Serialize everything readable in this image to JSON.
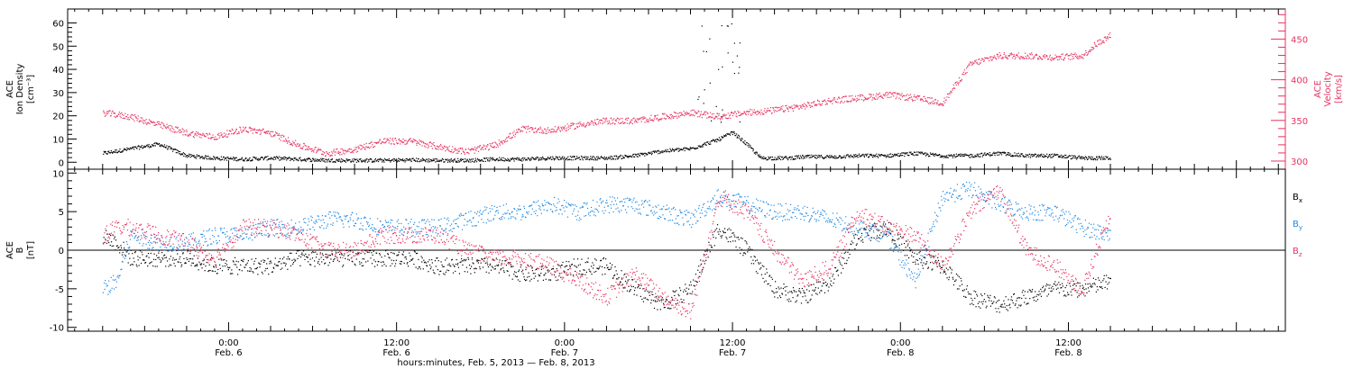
{
  "colors": {
    "density": "#000000",
    "velocity": "#e8325f",
    "bx": "#000000",
    "by": "#1e88e5",
    "bz": "#e8325f",
    "axis": "#000000"
  },
  "chart_data": [
    {
      "type": "scatter",
      "panel": "top",
      "left_axis": {
        "label_lines": [
          "ACE",
          "Ion Density"
        ],
        "unit": "[cm⁻³]",
        "range": [
          -3,
          66
        ],
        "ticks": [
          0,
          10,
          20,
          30,
          40,
          50,
          60
        ],
        "tick_labels": [
          "0",
          "10",
          "20",
          "30",
          "40",
          "50",
          "60"
        ]
      },
      "right_axis": {
        "label_lines": [
          "ACE",
          "Velocity"
        ],
        "unit": "[km/s]",
        "range": [
          290,
          487
        ],
        "ticks": [
          300,
          350,
          400,
          450
        ],
        "tick_labels": [
          "300",
          "350",
          "400",
          "450"
        ]
      },
      "series": [
        {
          "key": "density",
          "axis": "left",
          "color": "#000000",
          "x": [
            -9,
            -7,
            -5,
            -3,
            -1,
            1,
            3,
            5,
            7,
            9,
            11,
            13,
            15,
            17,
            19,
            21,
            23,
            25,
            27,
            29,
            31,
            33,
            34,
            35,
            36,
            37,
            38,
            39,
            40,
            41,
            43,
            45,
            47,
            49,
            51,
            53,
            55,
            57,
            59,
            61,
            63
          ],
          "y": [
            4,
            6,
            8,
            3,
            2,
            1.5,
            2,
            1.5,
            1,
            1,
            1,
            1.2,
            1,
            1,
            1.5,
            1.5,
            2,
            2,
            2,
            3,
            5,
            6,
            8,
            10,
            13,
            8,
            2,
            2,
            2,
            2.5,
            2.5,
            3,
            3,
            4,
            3,
            3,
            4,
            3,
            3,
            2,
            2
          ]
        },
        {
          "key": "velocity",
          "axis": "right",
          "color": "#e8325f",
          "x": [
            -9,
            -7,
            -5,
            -3,
            -1,
            0,
            1,
            3,
            5,
            7,
            9,
            11,
            13,
            15,
            17,
            19,
            21,
            23,
            25,
            27,
            29,
            31,
            33,
            35,
            37,
            39,
            41,
            43,
            45,
            47,
            49,
            51,
            53,
            55,
            57,
            59,
            61,
            62,
            63
          ],
          "y": [
            360,
            355,
            345,
            335,
            330,
            335,
            340,
            335,
            320,
            310,
            315,
            325,
            325,
            318,
            312,
            320,
            340,
            338,
            345,
            350,
            350,
            355,
            360,
            355,
            360,
            363,
            368,
            375,
            378,
            382,
            378,
            372,
            420,
            430,
            430,
            428,
            430,
            445,
            455
          ]
        }
      ]
    },
    {
      "type": "scatter",
      "panel": "bottom",
      "left_axis": {
        "label_lines": [
          "ACE",
          "B"
        ],
        "unit": "[nT]",
        "range": [
          -10.5,
          10.5
        ],
        "ticks": [
          -10,
          -5,
          0,
          5,
          10
        ],
        "tick_labels": [
          "-10",
          "-5",
          "0",
          "5",
          "10"
        ]
      },
      "zero_line": true,
      "legend_position": "right",
      "series": [
        {
          "key": "bx",
          "color": "#000000",
          "legend_base": "B",
          "legend_sub": "x",
          "x": [
            -9,
            -8,
            -7,
            -5,
            -3,
            -1,
            1,
            3,
            5,
            7,
            9,
            11,
            13,
            15,
            17,
            19,
            21,
            23,
            25,
            27,
            29,
            31,
            33,
            35,
            37,
            39,
            41,
            43,
            45,
            47,
            49,
            51,
            53,
            55,
            57,
            59,
            61,
            63
          ],
          "y": [
            2,
            1,
            -1,
            -1,
            -1,
            -2,
            -2,
            -2,
            -1,
            -1,
            -1,
            -1,
            -1,
            -2,
            -2,
            -2,
            -3,
            -3,
            -2,
            -2,
            -5,
            -7,
            -5,
            3,
            0,
            -5,
            -6,
            -4,
            2,
            3,
            -1,
            -2,
            -6,
            -7,
            -6,
            -5,
            -5,
            -4
          ]
        },
        {
          "key": "by",
          "color": "#1e88e5",
          "legend_base": "B",
          "legend_sub": "y",
          "x": [
            -9,
            -8,
            -7,
            -5,
            -3,
            -1,
            1,
            3,
            5,
            7,
            9,
            11,
            13,
            15,
            17,
            19,
            21,
            23,
            25,
            27,
            29,
            31,
            33,
            35,
            37,
            39,
            41,
            43,
            45,
            47,
            49,
            51,
            53,
            55,
            57,
            59,
            61,
            63
          ],
          "y": [
            -5,
            -4,
            2,
            1,
            1,
            2,
            2,
            3,
            3,
            4,
            4,
            3,
            3,
            3,
            4,
            5,
            5,
            6,
            5,
            6,
            6,
            5,
            4,
            7,
            6,
            5,
            5,
            4,
            3,
            2,
            -4,
            7,
            8,
            6,
            5,
            5,
            3,
            2
          ]
        },
        {
          "key": "bz",
          "color": "#e8325f",
          "legend_base": "B",
          "legend_sub": "z",
          "x": [
            -9,
            -8,
            -7,
            -5,
            -3,
            -1,
            1,
            3,
            5,
            7,
            9,
            11,
            13,
            15,
            17,
            19,
            21,
            23,
            25,
            27,
            29,
            31,
            33,
            35,
            37,
            39,
            41,
            43,
            45,
            47,
            49,
            51,
            53,
            55,
            57,
            59,
            61,
            63
          ],
          "y": [
            2,
            3,
            3,
            2,
            1,
            -1,
            3,
            3,
            2,
            0,
            0,
            2,
            2,
            2,
            0,
            -1,
            -1,
            -2,
            -4,
            -6,
            -3,
            -6,
            -8,
            7,
            5,
            0,
            -4,
            -2,
            5,
            3,
            2,
            -2,
            5,
            8,
            0,
            -2,
            -5,
            5
          ]
        }
      ]
    }
  ],
  "x_axis": {
    "range": [
      -11.5,
      75.5
    ],
    "major_ticks": [
      0,
      12,
      24,
      36,
      48,
      60
    ],
    "labels": [
      {
        "x": 0,
        "time": "0:00",
        "date": "Feb. 6"
      },
      {
        "x": 12,
        "time": "12:00",
        "date": "Feb. 6"
      },
      {
        "x": 24,
        "time": "0:00",
        "date": "Feb. 7"
      },
      {
        "x": 36,
        "time": "12:00",
        "date": "Feb. 7"
      },
      {
        "x": 48,
        "time": "0:00",
        "date": "Feb. 8"
      },
      {
        "x": 60,
        "time": "12:00",
        "date": "Feb. 8"
      }
    ],
    "title": "hours:minutes, Feb.  5, 2013 — Feb.  8, 2013"
  }
}
